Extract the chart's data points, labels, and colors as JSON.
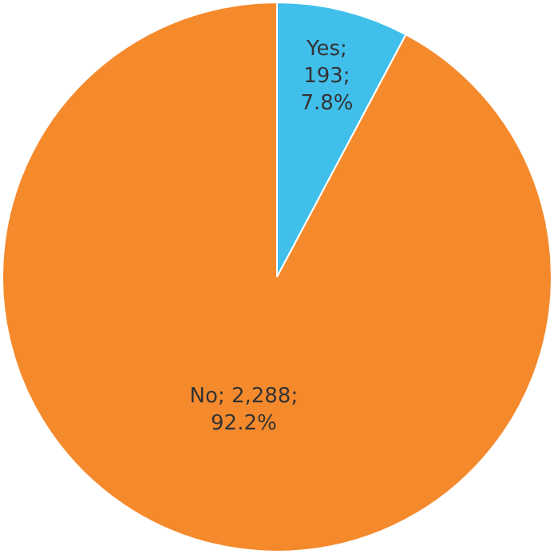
{
  "chart_data": {
    "type": "pie",
    "categories": [
      "Yes",
      "No"
    ],
    "values": [
      193,
      2288
    ],
    "colors": [
      "#41bfeb",
      "#f58a2d"
    ],
    "value_labels": [
      "; 193; 7.8%",
      "; 2,288; 92.2%"
    ],
    "legend": false
  }
}
